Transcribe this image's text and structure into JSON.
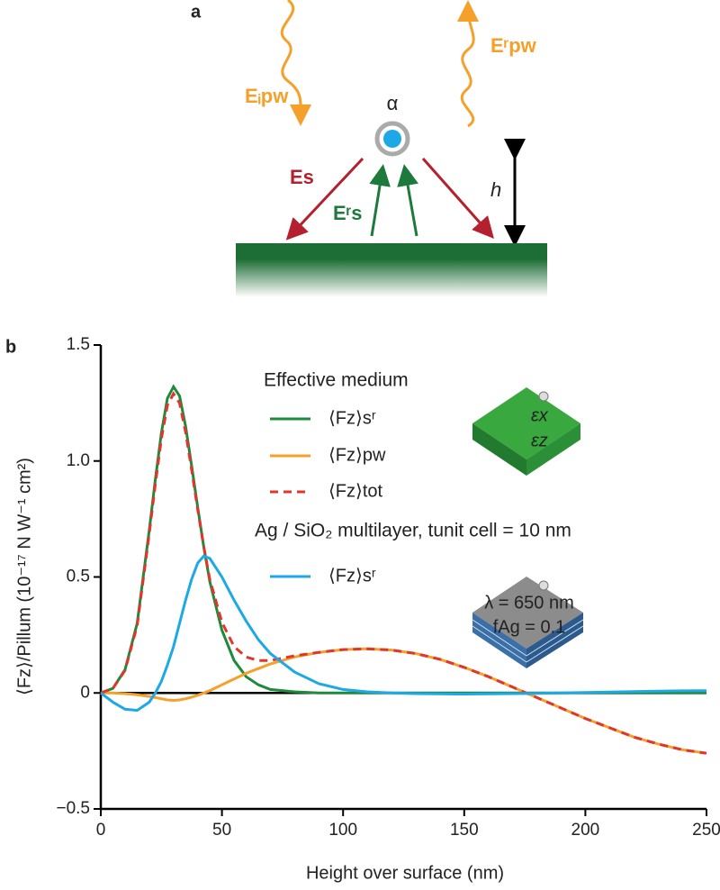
{
  "panel_a": {
    "label": "a",
    "incident_field": "Eᵢpw",
    "reflected_field": "Eʳpw",
    "polarizability": "α",
    "scattered_field": "Es",
    "reflected_scattered_field": "Eʳs",
    "height": "h"
  },
  "chart_data": {
    "type": "line",
    "panel_label": "b",
    "xlabel": "Height over surface (nm)",
    "ylabel": "⟨Fz⟩/Pillum  (10⁻¹⁷ N W⁻¹ cm²)",
    "legend_groups": [
      "Effective medium",
      "Ag / SiO₂ multilayer, tunit cell = 10 nm"
    ],
    "inset_labels": [
      "εx",
      "εz",
      "λ = 650 nm",
      "fAg = 0.1"
    ],
    "x": [
      0,
      5,
      10,
      15,
      20,
      22.5,
      25,
      27.5,
      30,
      32.5,
      35,
      37.5,
      40,
      42.5,
      45,
      50,
      55,
      60,
      65,
      70,
      80,
      90,
      100,
      110,
      120,
      130,
      140,
      150,
      160,
      170,
      180,
      190,
      200,
      210,
      220,
      230,
      240,
      250
    ],
    "series": [
      {
        "name": "⟨Fz⟩sʳ",
        "color": "#1e8a3c",
        "style": "solid",
        "group": 0,
        "values": [
          0,
          0.02,
          0.1,
          0.3,
          0.7,
          0.92,
          1.12,
          1.27,
          1.32,
          1.28,
          1.15,
          0.98,
          0.8,
          0.63,
          0.48,
          0.27,
          0.14,
          0.07,
          0.035,
          0.015,
          0.005,
          0,
          0,
          0,
          0,
          0,
          0,
          0,
          0,
          0,
          0,
          0,
          0,
          0,
          0,
          0,
          0,
          0
        ]
      },
      {
        "name": "⟨Fz⟩pw",
        "color": "#f5a02a",
        "style": "solid",
        "group": 0,
        "values": [
          0,
          0,
          -0.003,
          -0.008,
          -0.015,
          -0.02,
          -0.025,
          -0.03,
          -0.032,
          -0.03,
          -0.025,
          -0.018,
          -0.01,
          0,
          0.01,
          0.035,
          0.06,
          0.085,
          0.105,
          0.125,
          0.155,
          0.175,
          0.187,
          0.19,
          0.185,
          0.17,
          0.145,
          0.11,
          0.07,
          0.025,
          -0.02,
          -0.065,
          -0.11,
          -0.15,
          -0.19,
          -0.22,
          -0.245,
          -0.26
        ]
      },
      {
        "name": "⟨Fz⟩tot",
        "color": "#e0362c",
        "style": "dashed",
        "group": 0,
        "values": [
          0,
          0.02,
          0.097,
          0.29,
          0.685,
          0.9,
          1.095,
          1.24,
          1.29,
          1.25,
          1.125,
          0.962,
          0.79,
          0.63,
          0.49,
          0.305,
          0.2,
          0.155,
          0.14,
          0.14,
          0.16,
          0.175,
          0.187,
          0.19,
          0.185,
          0.17,
          0.145,
          0.11,
          0.07,
          0.025,
          -0.02,
          -0.065,
          -0.11,
          -0.15,
          -0.19,
          -0.22,
          -0.245,
          -0.26
        ]
      },
      {
        "name": "⟨Fz⟩sʳ",
        "color": "#1ea8e6",
        "style": "solid",
        "group": 1,
        "values": [
          0,
          -0.04,
          -0.07,
          -0.075,
          -0.04,
          0,
          0.05,
          0.12,
          0.2,
          0.3,
          0.4,
          0.49,
          0.56,
          0.59,
          0.58,
          0.5,
          0.4,
          0.31,
          0.23,
          0.17,
          0.09,
          0.04,
          0.015,
          0.005,
          0,
          -0.003,
          -0.004,
          -0.005,
          -0.004,
          -0.003,
          -0.002,
          0,
          0.002,
          0.004,
          0.006,
          0.008,
          0.009,
          0.01
        ]
      }
    ],
    "xlim": [
      0,
      250
    ],
    "xticks": [
      0,
      50,
      100,
      150,
      200,
      250
    ],
    "ylim": [
      -0.5,
      1.5
    ],
    "yticks": [
      {
        "value": -0.5,
        "label": "−0.5"
      },
      0,
      0.5,
      {
        "value": 1,
        "label": "1.0"
      },
      1.5
    ]
  }
}
